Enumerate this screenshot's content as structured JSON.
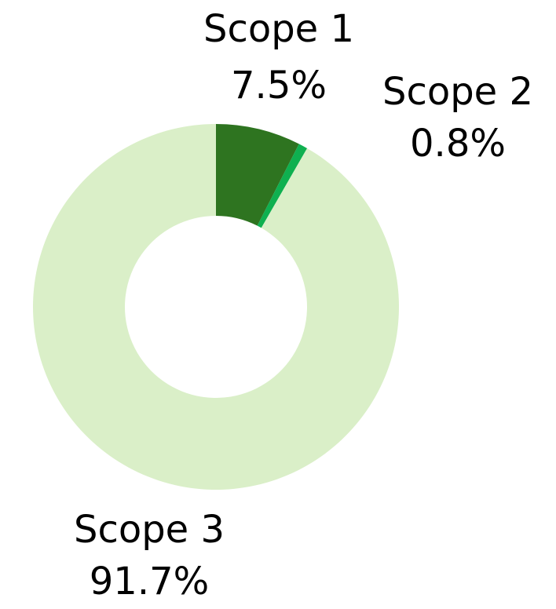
{
  "chart_data": {
    "type": "donut",
    "categories": [
      "Scope 1",
      "Scope 2",
      "Scope 3"
    ],
    "values": [
      7.5,
      0.8,
      91.7
    ],
    "value_labels": [
      "7.5%",
      "0.8%",
      "91.7%"
    ],
    "colors": [
      "#2e7420",
      "#0fb050",
      "#daefc8"
    ]
  }
}
